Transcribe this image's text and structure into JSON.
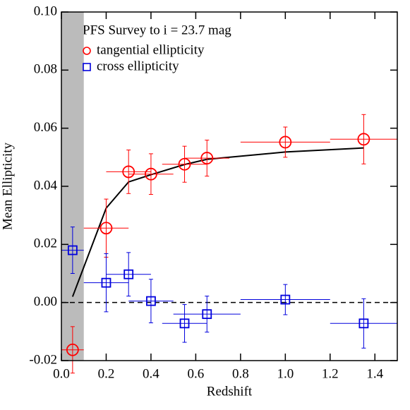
{
  "chart_data": {
    "type": "errorbar",
    "title": "PFS Survey to i = 23.7 mag",
    "xlabel": "Redshift",
    "ylabel": "Mean Ellipticity",
    "xlim": [
      0,
      1.5
    ],
    "ylim": [
      -0.02,
      0.1
    ],
    "xticks": [
      {
        "value": 0,
        "label": "0.0"
      },
      {
        "value": 0.2,
        "label": "0.2"
      },
      {
        "value": 0.4,
        "label": "0.4"
      },
      {
        "value": 0.6,
        "label": "0.6"
      },
      {
        "value": 0.8,
        "label": "0.8"
      },
      {
        "value": 1.0,
        "label": "1.0"
      },
      {
        "value": 1.2,
        "label": "1.2"
      },
      {
        "value": 1.4,
        "label": "1.4"
      }
    ],
    "yticks": [
      {
        "value": -0.02,
        "label": "-0.02"
      },
      {
        "value": 0,
        "label": "0.00"
      },
      {
        "value": 0.02,
        "label": "0.02"
      },
      {
        "value": 0.04,
        "label": "0.04"
      },
      {
        "value": 0.06,
        "label": "0.06"
      },
      {
        "value": 0.08,
        "label": "0.08"
      },
      {
        "value": 0.1,
        "label": "0.10"
      }
    ],
    "shaded_xrange": [
      0,
      0.1
    ],
    "shade_color": "#bbbbbb",
    "reference_line": 0,
    "series": [
      {
        "name": "tangential ellipticity",
        "color": "#ff0000",
        "marker": "circle",
        "x": [
          0.05,
          0.2,
          0.3,
          0.4,
          0.55,
          0.65,
          1.0,
          1.35
        ],
        "values": [
          -0.0163,
          0.0256,
          0.045,
          0.0442,
          0.0476,
          0.0497,
          0.0552,
          0.0562
        ],
        "xerr": [
          0.05,
          0.1,
          0.1,
          0.1,
          0.1,
          0.1,
          0.2,
          0.15
        ],
        "yerr": [
          0.008,
          0.01,
          0.0075,
          0.007,
          0.0062,
          0.0062,
          0.0052,
          0.0085
        ]
      },
      {
        "name": "cross ellipticity",
        "color": "#0000dd",
        "marker": "square",
        "x": [
          0.05,
          0.2,
          0.3,
          0.4,
          0.55,
          0.65,
          1.0,
          1.35
        ],
        "values": [
          0.018,
          0.0068,
          0.0097,
          0.0005,
          -0.0072,
          -0.004,
          0.001,
          -0.0072
        ],
        "xerr": [
          0.05,
          0.1,
          0.1,
          0.1,
          0.1,
          0.15,
          0.2,
          0.15
        ],
        "yerr": [
          0.008,
          0.01,
          0.0075,
          0.0075,
          0.0065,
          0.0062,
          0.0052,
          0.0085
        ]
      }
    ],
    "model": {
      "color": "#000000",
      "x": [
        0.05,
        0.2,
        0.3,
        0.4,
        0.55,
        0.65,
        1.0,
        1.35
      ],
      "values": [
        0.002,
        0.0325,
        0.0415,
        0.044,
        0.0475,
        0.0493,
        0.0518,
        0.0532
      ]
    }
  }
}
